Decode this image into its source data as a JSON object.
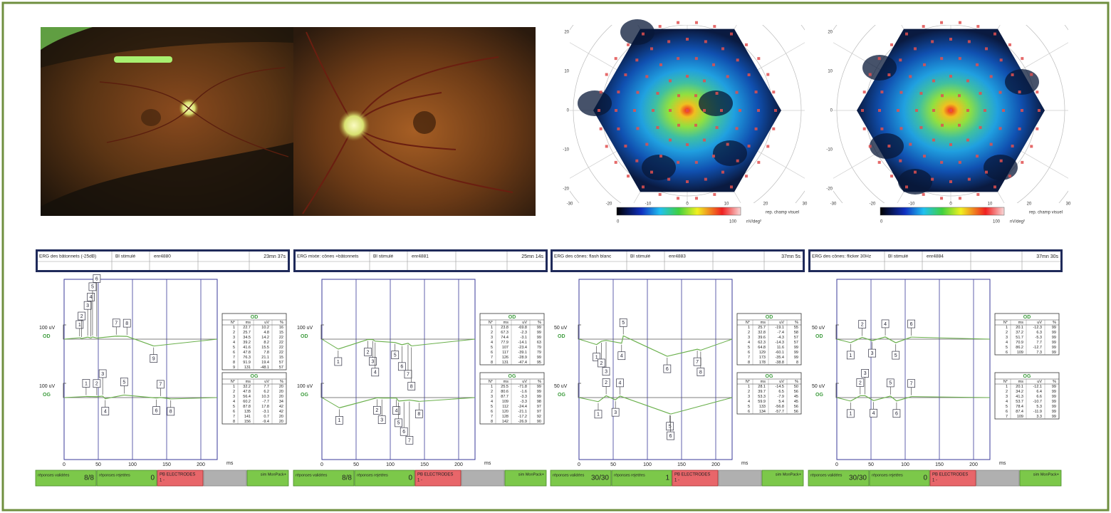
{
  "table_columns": [
    "N°",
    "ms",
    "uV",
    "%"
  ],
  "ms_axis": {
    "ticks": [
      0,
      50,
      100,
      150,
      200
    ],
    "unit": "ms"
  },
  "maps": [
    {
      "xticks": [
        -30,
        -20,
        -10,
        0,
        10,
        20,
        30
      ],
      "yticks": [
        20,
        10,
        0,
        -10,
        -20
      ],
      "colorbar": {
        "min": 0,
        "max": 100,
        "unit": "nV/deg²"
      },
      "axis_note": "rep. champ visuel"
    },
    {
      "xticks": [
        -30,
        -20,
        -10,
        0,
        10,
        20,
        30
      ],
      "yticks": [
        20,
        10,
        0,
        -10,
        -20
      ],
      "colorbar": {
        "min": 0,
        "max": 100,
        "unit": "nV/deg²"
      },
      "axis_note": "rep. champ visuel"
    }
  ],
  "panels": [
    {
      "header": {
        "title": "ERG des bâtonnets (-25dB)",
        "stim": "Bl stimulé",
        "record": "enr4880",
        "time": "23mn 37s"
      },
      "scale": {
        "value": 100,
        "label": "100 uV"
      },
      "eyes": [
        {
          "label": "OD",
          "rows": [
            [
              1,
              22.7,
              10.2,
              16
            ],
            [
              2,
              25.7,
              4.8,
              15
            ],
            [
              3,
              34.5,
              14.2,
              22
            ],
            [
              4,
              39.2,
              8.2,
              22
            ],
            [
              5,
              41.6,
              15.5,
              22
            ],
            [
              6,
              47.8,
              7.8,
              22
            ],
            [
              7,
              76.3,
              21.1,
              15
            ],
            [
              8,
              91.9,
              19.4,
              57
            ],
            [
              9,
              131,
              -48.1,
              57
            ]
          ]
        },
        {
          "label": "OG",
          "rows": [
            [
              1,
              32.2,
              7.7,
              20
            ],
            [
              2,
              47.8,
              6.2,
              20
            ],
            [
              3,
              56.4,
              10.3,
              20
            ],
            [
              4,
              60.2,
              -7.7,
              34
            ],
            [
              5,
              87.8,
              17.8,
              42
            ],
            [
              6,
              135,
              -3.1,
              42
            ],
            [
              7,
              141,
              0.7,
              20
            ],
            [
              8,
              156,
              -9.4,
              20
            ]
          ]
        }
      ],
      "footer": {
        "valid_label": "réponses validées",
        "valid": "8/8",
        "rejected_label": "réponses rejetées",
        "rejected": "0",
        "electrodes": "PB ELECTRODES",
        "electrodes_note": "1 -",
        "sim": "sim MonPack+"
      }
    },
    {
      "header": {
        "title": "ERG mixte: cônes +bâtonnets",
        "stim": "Bl stimulé",
        "record": "enr4881",
        "time": "25mn 14s"
      },
      "scale": {
        "value": 100,
        "label": "100 uV"
      },
      "eyes": [
        {
          "label": "OD",
          "rows": [
            [
              1,
              23.8,
              -69.8,
              99
            ],
            [
              2,
              67.3,
              -2.3,
              99
            ],
            [
              3,
              74.4,
              -3.1,
              99
            ],
            [
              4,
              77.9,
              -14.1,
              63
            ],
            [
              5,
              107,
              -23.4,
              79
            ],
            [
              6,
              117,
              -39.1,
              79
            ],
            [
              7,
              126,
              -28.9,
              99
            ],
            [
              8,
              131,
              -47.4,
              95
            ]
          ]
        },
        {
          "label": "OG",
          "rows": [
            [
              1,
              25.5,
              -71.8,
              99
            ],
            [
              2,
              80.6,
              -1.6,
              99
            ],
            [
              3,
              87.7,
              -3.3,
              99
            ],
            [
              4,
              109,
              -3.3,
              98
            ],
            [
              5,
              112,
              -24.4,
              97
            ],
            [
              6,
              120,
              -21.1,
              97
            ],
            [
              7,
              128,
              -17.2,
              92
            ],
            [
              8,
              142,
              -26.9,
              90
            ]
          ]
        }
      ],
      "footer": {
        "valid_label": "réponses validées",
        "valid": "8/8",
        "rejected_label": "réponses rejetées",
        "rejected": "0",
        "electrodes": "PB ELECTRODES",
        "electrodes_note": "1 -",
        "sim": "sim MonPack+"
      }
    },
    {
      "header": {
        "title": "ERG des cônes: flash blanc",
        "stim": "Bl stimulé",
        "record": "enr4883",
        "time": "37mn 5s"
      },
      "scale": {
        "value": 50,
        "label": "50 uV"
      },
      "eyes": [
        {
          "label": "OD",
          "rows": [
            [
              1,
              25.7,
              -19.1,
              55
            ],
            [
              2,
              32.8,
              -7.4,
              58
            ],
            [
              3,
              39.6,
              -4.3,
              57
            ],
            [
              4,
              62.3,
              -14.3,
              57
            ],
            [
              5,
              64.8,
              11.6,
              99
            ],
            [
              6,
              129,
              -60.1,
              99
            ],
            [
              7,
              173,
              -35.4,
              99
            ],
            [
              8,
              178,
              -38.8,
              8
            ]
          ]
        },
        {
          "label": "OG",
          "rows": [
            [
              1,
              28.1,
              -14.5,
              50
            ],
            [
              2,
              39.7,
              6.5,
              56
            ],
            [
              3,
              53.3,
              -7.9,
              45
            ],
            [
              4,
              59.9,
              5.4,
              45
            ],
            [
              5,
              133,
              -56.8,
              56
            ],
            [
              6,
              134,
              -57.7,
              56
            ]
          ]
        }
      ],
      "footer": {
        "valid_label": "réponses validées",
        "valid": "30/30",
        "rejected_label": "réponses rejetées",
        "rejected": "1",
        "electrodes": "PB ELECTRODES",
        "electrodes_note": "1 -",
        "sim": "sim MonPack+"
      }
    },
    {
      "header": {
        "title": "ERG des cônes: flicker 30Hz",
        "stim": "Bl stimulé",
        "record": "enr4884",
        "time": "37mn 30s"
      },
      "scale": {
        "value": 50,
        "label": "50 uV"
      },
      "eyes": [
        {
          "label": "OD",
          "rows": [
            [
              1,
              20.1,
              -12.3,
              99
            ],
            [
              2,
              37.2,
              6.3,
              99
            ],
            [
              3,
              51.7,
              -5.3,
              99
            ],
            [
              4,
              70.9,
              7.7,
              99
            ],
            [
              5,
              86.2,
              -12.7,
              99
            ],
            [
              6,
              109,
              7.3,
              99
            ]
          ]
        },
        {
          "label": "OG",
          "rows": [
            [
              1,
              20.1,
              -12.1,
              99
            ],
            [
              2,
              34.2,
              6.4,
              99
            ],
            [
              3,
              41.3,
              6.6,
              99
            ],
            [
              4,
              53.7,
              -10.7,
              99
            ],
            [
              5,
              78.4,
              5.3,
              99
            ],
            [
              6,
              87.4,
              -11.9,
              99
            ],
            [
              7,
              109,
              3.3,
              99
            ]
          ]
        }
      ],
      "footer": {
        "valid_label": "réponses validées",
        "valid": "30/30",
        "rejected_label": "réponses rejetées",
        "rejected": "0",
        "electrodes": "PB ELECTRODES",
        "electrodes_note": "1 -",
        "sim": "sim MonPack+"
      }
    }
  ]
}
